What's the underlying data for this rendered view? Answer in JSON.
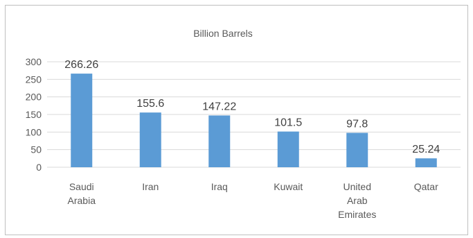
{
  "chart_data": {
    "type": "bar",
    "title": "Billion Barrels",
    "xlabel": "",
    "ylabel": "",
    "categories": [
      [
        "Saudi",
        "Arabia"
      ],
      [
        "Iran"
      ],
      [
        "Iraq"
      ],
      [
        "Kuwait"
      ],
      [
        "United",
        "Arab",
        "Emirates"
      ],
      [
        "Qatar"
      ]
    ],
    "values": [
      266.26,
      155.6,
      147.22,
      101.5,
      97.8,
      25.24
    ],
    "data_labels": [
      "266.26",
      "155.6",
      "147.22",
      "101.5",
      "97.8",
      "25.24"
    ],
    "yticks": [
      0,
      50,
      100,
      150,
      200,
      250,
      300
    ],
    "ylim": [
      0,
      300
    ],
    "grid": true,
    "legend": "none",
    "colors": {
      "bar": "#5b9bd5",
      "grid": "#d9d9d9",
      "text": "#595959",
      "label": "#404040"
    }
  }
}
